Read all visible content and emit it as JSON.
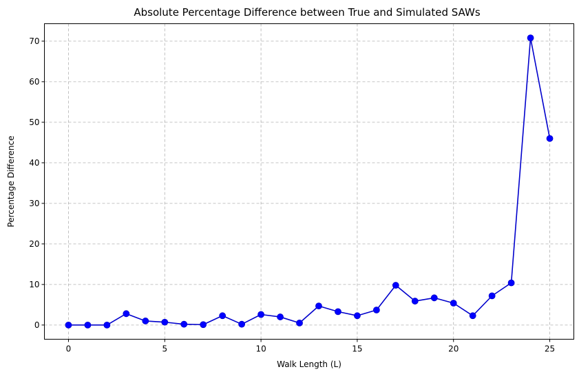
{
  "chart_data": {
    "type": "line",
    "title": "Absolute Percentage Difference between True and Simulated SAWs",
    "xlabel": "Walk Length (L)",
    "ylabel": "Percentage Difference",
    "xlim": [
      -1.25,
      26.25
    ],
    "ylim": [
      -3.5,
      74.3
    ],
    "xticks": [
      0,
      5,
      10,
      15,
      20,
      25
    ],
    "yticks": [
      0,
      10,
      20,
      30,
      40,
      50,
      60,
      70
    ],
    "grid": true,
    "line_color": "#0000cc",
    "marker_color": "#0000ff",
    "x": [
      0,
      1,
      2,
      3,
      4,
      5,
      6,
      7,
      8,
      9,
      10,
      11,
      12,
      13,
      14,
      15,
      16,
      17,
      18,
      19,
      20,
      21,
      22,
      23,
      24,
      25
    ],
    "y": [
      0,
      0,
      0,
      2.8,
      1.0,
      0.7,
      0.2,
      0.1,
      2.3,
      0.2,
      2.6,
      2.0,
      0.5,
      4.7,
      3.3,
      2.3,
      3.7,
      9.8,
      5.9,
      6.7,
      5.4,
      2.3,
      7.2,
      10.4,
      70.8,
      46.0
    ]
  }
}
